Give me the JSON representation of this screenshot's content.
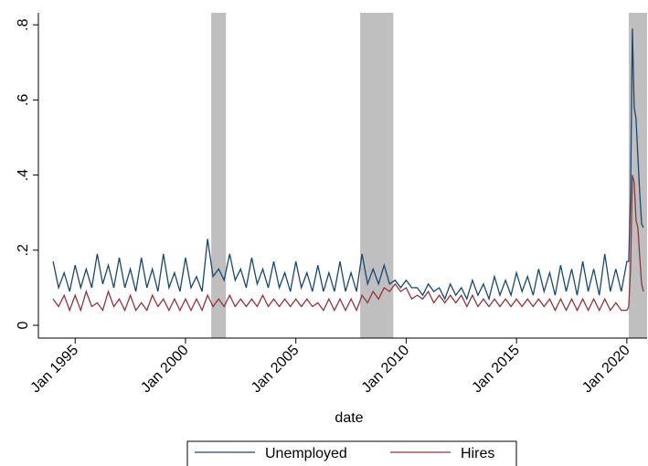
{
  "chart_data": {
    "type": "line",
    "x_label": "date",
    "x": [
      "1994-01",
      "1994-04",
      "1994-07",
      "1994-10",
      "1995-01",
      "1995-04",
      "1995-07",
      "1995-10",
      "1996-01",
      "1996-04",
      "1996-07",
      "1996-10",
      "1997-01",
      "1997-04",
      "1997-07",
      "1997-10",
      "1998-01",
      "1998-04",
      "1998-07",
      "1998-10",
      "1999-01",
      "1999-04",
      "1999-07",
      "1999-10",
      "2000-01",
      "2000-04",
      "2000-07",
      "2000-10",
      "2001-01",
      "2001-04",
      "2001-07",
      "2001-10",
      "2002-01",
      "2002-04",
      "2002-07",
      "2002-10",
      "2003-01",
      "2003-04",
      "2003-07",
      "2003-10",
      "2004-01",
      "2004-04",
      "2004-07",
      "2004-10",
      "2005-01",
      "2005-04",
      "2005-07",
      "2005-10",
      "2006-01",
      "2006-04",
      "2006-07",
      "2006-10",
      "2007-01",
      "2007-04",
      "2007-07",
      "2007-10",
      "2008-01",
      "2008-04",
      "2008-07",
      "2008-10",
      "2009-01",
      "2009-04",
      "2009-07",
      "2009-10",
      "2010-01",
      "2010-04",
      "2010-07",
      "2010-10",
      "2011-01",
      "2011-04",
      "2011-07",
      "2011-10",
      "2012-01",
      "2012-04",
      "2012-07",
      "2012-10",
      "2013-01",
      "2013-04",
      "2013-07",
      "2013-10",
      "2014-01",
      "2014-04",
      "2014-07",
      "2014-10",
      "2015-01",
      "2015-04",
      "2015-07",
      "2015-10",
      "2016-01",
      "2016-04",
      "2016-07",
      "2016-10",
      "2017-01",
      "2017-04",
      "2017-07",
      "2017-10",
      "2018-01",
      "2018-04",
      "2018-07",
      "2018-10",
      "2019-01",
      "2019-04",
      "2019-07",
      "2019-10",
      "2020-01",
      "2020-02",
      "2020-03",
      "2020-04",
      "2020-05",
      "2020-06",
      "2020-07",
      "2020-08",
      "2020-09",
      "2020-10"
    ],
    "series": [
      {
        "name": "Unemployed",
        "color": "#1a476f",
        "values": [
          0.17,
          0.1,
          0.14,
          0.09,
          0.16,
          0.1,
          0.15,
          0.1,
          0.19,
          0.11,
          0.16,
          0.1,
          0.18,
          0.1,
          0.15,
          0.09,
          0.18,
          0.1,
          0.15,
          0.09,
          0.19,
          0.1,
          0.14,
          0.09,
          0.18,
          0.1,
          0.13,
          0.09,
          0.23,
          0.13,
          0.15,
          0.12,
          0.19,
          0.12,
          0.15,
          0.1,
          0.18,
          0.11,
          0.15,
          0.1,
          0.17,
          0.1,
          0.14,
          0.09,
          0.17,
          0.1,
          0.14,
          0.09,
          0.16,
          0.09,
          0.14,
          0.09,
          0.17,
          0.09,
          0.14,
          0.09,
          0.19,
          0.11,
          0.15,
          0.11,
          0.16,
          0.11,
          0.12,
          0.1,
          0.12,
          0.1,
          0.1,
          0.08,
          0.11,
          0.09,
          0.1,
          0.07,
          0.11,
          0.08,
          0.1,
          0.07,
          0.12,
          0.08,
          0.11,
          0.07,
          0.13,
          0.08,
          0.12,
          0.08,
          0.14,
          0.09,
          0.13,
          0.08,
          0.15,
          0.09,
          0.14,
          0.08,
          0.16,
          0.09,
          0.15,
          0.08,
          0.17,
          0.09,
          0.15,
          0.08,
          0.19,
          0.09,
          0.15,
          0.09,
          0.17,
          0.17,
          0.35,
          0.79,
          0.58,
          0.55,
          0.45,
          0.35,
          0.27,
          0.26
        ]
      },
      {
        "name": "Hires",
        "color": "#90353b",
        "values": [
          0.07,
          0.05,
          0.08,
          0.04,
          0.08,
          0.04,
          0.09,
          0.05,
          0.06,
          0.04,
          0.09,
          0.05,
          0.07,
          0.04,
          0.08,
          0.04,
          0.06,
          0.04,
          0.08,
          0.05,
          0.07,
          0.04,
          0.07,
          0.04,
          0.07,
          0.04,
          0.07,
          0.04,
          0.08,
          0.05,
          0.07,
          0.05,
          0.08,
          0.05,
          0.07,
          0.05,
          0.07,
          0.05,
          0.08,
          0.05,
          0.07,
          0.05,
          0.07,
          0.05,
          0.07,
          0.05,
          0.07,
          0.05,
          0.06,
          0.04,
          0.07,
          0.04,
          0.07,
          0.04,
          0.07,
          0.04,
          0.08,
          0.06,
          0.09,
          0.07,
          0.1,
          0.09,
          0.11,
          0.09,
          0.1,
          0.07,
          0.08,
          0.07,
          0.09,
          0.06,
          0.08,
          0.06,
          0.08,
          0.06,
          0.08,
          0.05,
          0.08,
          0.05,
          0.07,
          0.05,
          0.07,
          0.05,
          0.07,
          0.05,
          0.07,
          0.05,
          0.07,
          0.05,
          0.07,
          0.05,
          0.07,
          0.04,
          0.07,
          0.04,
          0.07,
          0.04,
          0.07,
          0.04,
          0.07,
          0.04,
          0.07,
          0.04,
          0.06,
          0.04,
          0.04,
          0.05,
          0.15,
          0.4,
          0.38,
          0.28,
          0.26,
          0.18,
          0.11,
          0.09
        ]
      }
    ],
    "shading": [
      [
        "2001-03",
        "2001-11"
      ],
      [
        "2007-12",
        "2009-06"
      ],
      [
        "2020-02",
        "2020-12"
      ]
    ],
    "shading_color": "#bfbfbf",
    "xlim": [
      "1993-05",
      "2020-12"
    ],
    "xticks": [
      {
        "value": "1995-01",
        "label": "Jan 1995"
      },
      {
        "value": "2000-01",
        "label": "Jan 2000"
      },
      {
        "value": "2005-01",
        "label": "Jan 2005"
      },
      {
        "value": "2010-01",
        "label": "Jan 2010"
      },
      {
        "value": "2015-01",
        "label": "Jan 2015"
      },
      {
        "value": "2020-01",
        "label": "Jan 2020"
      }
    ],
    "ylim": [
      -0.034,
      0.832
    ],
    "yticks": [
      0,
      {
        "value": 0.2,
        "label": ".2"
      },
      {
        "value": 0.4,
        "label": ".4"
      },
      {
        "value": 0.6,
        "label": ".6"
      },
      {
        "value": 0.8,
        "label": ".8"
      }
    ],
    "legend": "bottom"
  }
}
